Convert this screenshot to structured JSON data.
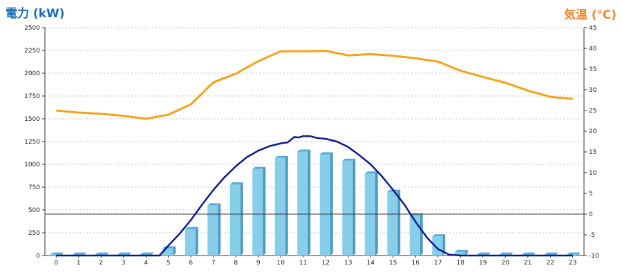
{
  "chart_data": {
    "type": "bar+line",
    "left_axis": {
      "label": "電力 (kW)",
      "color": "#1a6fb5",
      "ylim": [
        0,
        2500
      ],
      "ticks": [
        "0",
        "250",
        "500",
        "750",
        "1000",
        "1250",
        "1500",
        "1750",
        "2000",
        "2250",
        "2500"
      ]
    },
    "right_axis": {
      "label": "気温 (℃)",
      "color": "#f0882c",
      "ylim": [
        -10,
        45
      ],
      "ticks": [
        "-10",
        "-5",
        "0",
        "5",
        "10",
        "15",
        "20",
        "25",
        "30",
        "35",
        "40",
        "45"
      ]
    },
    "x_ticks": [
      "0",
      "1",
      "2",
      "3",
      "4",
      "5",
      "6",
      "7",
      "8",
      "9",
      "10",
      "11",
      "12",
      "13",
      "14",
      "15",
      "16",
      "17",
      "18",
      "19",
      "20",
      "21",
      "22",
      "23"
    ],
    "hours": [
      0,
      1,
      2,
      3,
      4,
      5,
      6,
      7,
      8,
      9,
      10,
      11,
      12,
      13,
      14,
      15,
      16,
      17,
      18,
      19,
      20,
      21,
      22,
      23
    ],
    "series": [
      {
        "kind": "bar",
        "axis": "left",
        "color": "#87ceeb",
        "side_color": "#4e9ac3",
        "top_color": "#5aa9d6",
        "values": [
          10,
          10,
          10,
          10,
          10,
          80,
          290,
          550,
          780,
          950,
          1070,
          1140,
          1110,
          1040,
          900,
          700,
          440,
          210,
          40,
          10,
          10,
          10,
          10,
          10
        ]
      },
      {
        "kind": "line",
        "axis": "left",
        "color": "#0a1a8c",
        "points": [
          [
            0,
            0
          ],
          [
            1,
            0
          ],
          [
            2,
            0
          ],
          [
            3,
            0
          ],
          [
            4,
            0
          ],
          [
            4.6,
            0
          ],
          [
            5,
            110
          ],
          [
            5.5,
            240
          ],
          [
            6,
            390
          ],
          [
            6.5,
            560
          ],
          [
            7,
            720
          ],
          [
            7.5,
            860
          ],
          [
            8,
            980
          ],
          [
            8.5,
            1080
          ],
          [
            9,
            1150
          ],
          [
            9.5,
            1200
          ],
          [
            10,
            1230
          ],
          [
            10.3,
            1240
          ],
          [
            10.6,
            1300
          ],
          [
            10.8,
            1295
          ],
          [
            11,
            1310
          ],
          [
            11.3,
            1310
          ],
          [
            11.6,
            1290
          ],
          [
            12,
            1280
          ],
          [
            12.5,
            1250
          ],
          [
            13,
            1190
          ],
          [
            13.5,
            1100
          ],
          [
            14,
            1000
          ],
          [
            14.5,
            870
          ],
          [
            15,
            720
          ],
          [
            15.5,
            560
          ],
          [
            16,
            370
          ],
          [
            16.5,
            200
          ],
          [
            17,
            70
          ],
          [
            17.5,
            10
          ],
          [
            18,
            0
          ],
          [
            19,
            0
          ],
          [
            20,
            0
          ],
          [
            21,
            0
          ],
          [
            22,
            0
          ],
          [
            23,
            0
          ]
        ]
      },
      {
        "kind": "line",
        "axis": "right",
        "color": "#f5a21a",
        "values": [
          25.0,
          24.5,
          24.2,
          23.7,
          23.0,
          24.0,
          26.5,
          31.8,
          33.9,
          36.9,
          39.3,
          39.3,
          39.4,
          38.3,
          38.6,
          38.2,
          37.6,
          36.8,
          34.6,
          33.1,
          31.7,
          29.8,
          28.3,
          27.8
        ]
      }
    ],
    "grid": {
      "horizontal": true,
      "style": "dotted"
    },
    "reference_line": {
      "axis": "right",
      "value": 0,
      "color": "#333333"
    }
  }
}
